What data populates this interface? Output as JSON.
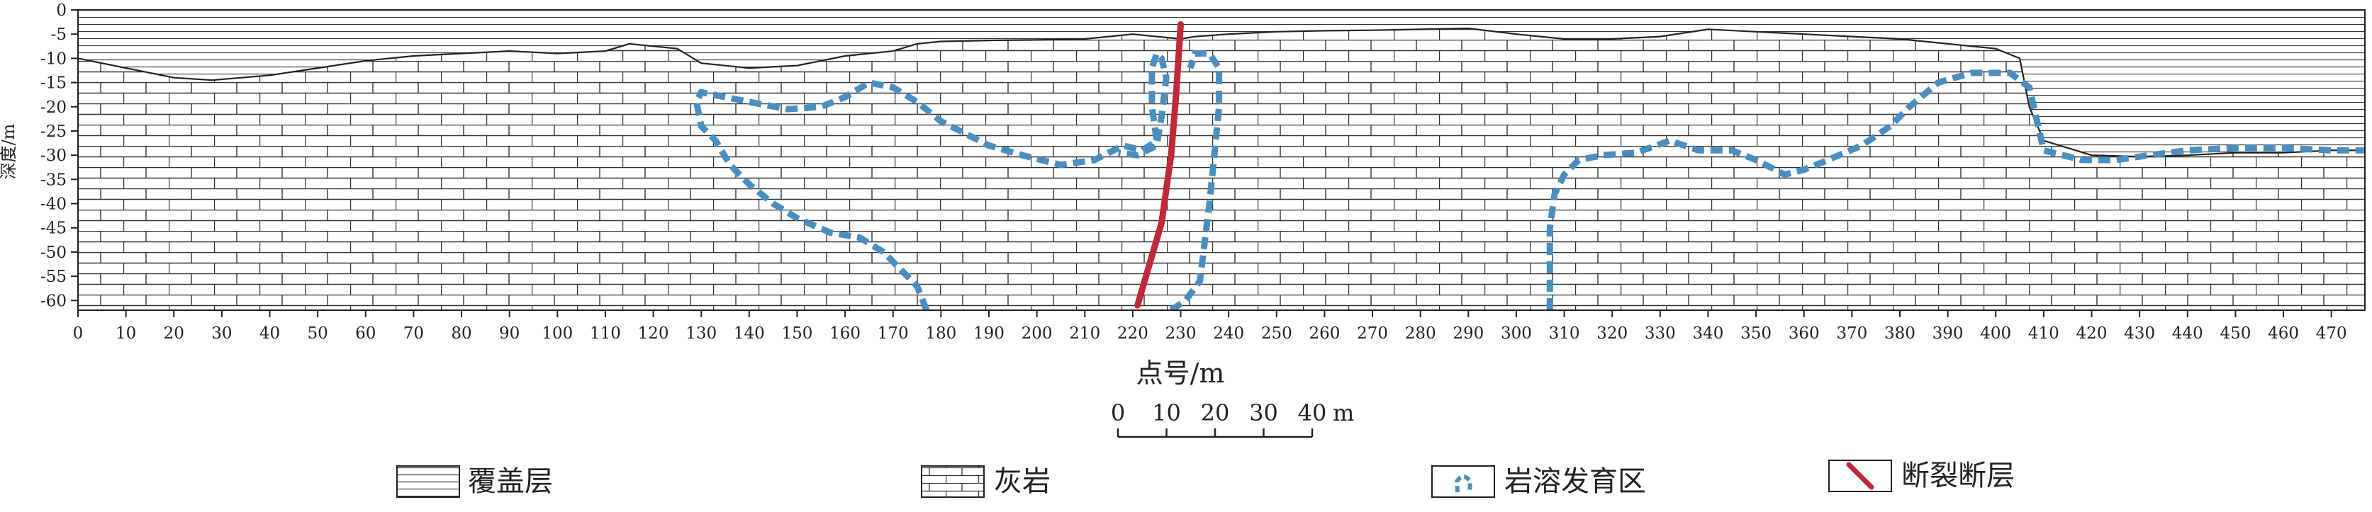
{
  "figure": {
    "y_axis": {
      "label": "深度/m",
      "ticks": [
        0,
        -5,
        -10,
        -15,
        -20,
        -25,
        -30,
        -35,
        -40,
        -45,
        -50,
        -55,
        -60
      ],
      "range": [
        -62,
        0
      ]
    },
    "x_axis": {
      "label": "点号/m",
      "ticks": [
        0,
        10,
        20,
        30,
        40,
        50,
        60,
        70,
        80,
        90,
        100,
        110,
        120,
        130,
        140,
        150,
        160,
        170,
        180,
        190,
        200,
        210,
        220,
        230,
        240,
        250,
        260,
        270,
        280,
        290,
        300,
        310,
        320,
        330,
        340,
        350,
        360,
        370,
        380,
        390,
        400,
        410,
        420,
        430,
        440,
        450,
        460,
        470
      ],
      "range": [
        0,
        477
      ]
    },
    "scale_bar": {
      "labels": [
        "0",
        "10",
        "20",
        "30",
        "40"
      ],
      "unit": "m",
      "values": [
        0,
        10,
        20,
        30,
        40
      ]
    },
    "surface_profile": [
      [
        0,
        -10
      ],
      [
        10,
        -12
      ],
      [
        20,
        -14
      ],
      [
        28,
        -14.5
      ],
      [
        40,
        -13.5
      ],
      [
        50,
        -12
      ],
      [
        60,
        -10.5
      ],
      [
        70,
        -9.5
      ],
      [
        80,
        -9
      ],
      [
        90,
        -8.5
      ],
      [
        100,
        -9
      ],
      [
        110,
        -8.5
      ],
      [
        115,
        -7
      ],
      [
        120,
        -7.5
      ],
      [
        125,
        -8
      ],
      [
        130,
        -11
      ],
      [
        140,
        -12
      ],
      [
        150,
        -11.5
      ],
      [
        160,
        -9.5
      ],
      [
        170,
        -8.5
      ],
      [
        175,
        -7
      ],
      [
        180,
        -6.5
      ],
      [
        190,
        -6.3
      ],
      [
        200,
        -6.2
      ],
      [
        210,
        -6
      ],
      [
        215,
        -5.5
      ],
      [
        220,
        -5
      ],
      [
        225,
        -5.5
      ],
      [
        230,
        -6
      ],
      [
        233,
        -5.5
      ],
      [
        240,
        -5
      ],
      [
        250,
        -4.5
      ],
      [
        260,
        -4.3
      ],
      [
        270,
        -4.2
      ],
      [
        280,
        -4
      ],
      [
        290,
        -3.8
      ],
      [
        300,
        -5
      ],
      [
        310,
        -6
      ],
      [
        320,
        -6
      ],
      [
        330,
        -5.5
      ],
      [
        340,
        -4
      ],
      [
        350,
        -4.5
      ],
      [
        360,
        -5
      ],
      [
        370,
        -5.5
      ],
      [
        380,
        -6
      ],
      [
        390,
        -7
      ],
      [
        400,
        -8
      ],
      [
        405,
        -10
      ],
      [
        407,
        -20
      ],
      [
        410,
        -27
      ],
      [
        420,
        -30
      ],
      [
        430,
        -30.3
      ],
      [
        440,
        -30
      ],
      [
        450,
        -29.5
      ],
      [
        460,
        -29.5
      ],
      [
        470,
        -29
      ],
      [
        477,
        -29
      ]
    ],
    "karst_zones": [
      {
        "id": "left",
        "points": [
          [
            177,
            -62
          ],
          [
            175,
            -57
          ],
          [
            172,
            -54
          ],
          [
            168,
            -50
          ],
          [
            163,
            -47
          ],
          [
            157,
            -46
          ],
          [
            150,
            -43
          ],
          [
            145,
            -40
          ],
          [
            140,
            -36
          ],
          [
            136,
            -32
          ],
          [
            133,
            -27
          ],
          [
            130,
            -24
          ],
          [
            129,
            -19
          ],
          [
            130,
            -17
          ],
          [
            135,
            -18
          ],
          [
            140,
            -19
          ],
          [
            148,
            -20.5
          ],
          [
            155,
            -20
          ],
          [
            160,
            -18
          ],
          [
            165,
            -15
          ],
          [
            170,
            -16
          ],
          [
            175,
            -19
          ],
          [
            180,
            -23
          ],
          [
            186,
            -26
          ],
          [
            190,
            -28
          ],
          [
            197,
            -30
          ],
          [
            205,
            -32
          ],
          [
            212,
            -31
          ],
          [
            218,
            -28
          ],
          [
            222,
            -29
          ],
          [
            225,
            -27
          ],
          [
            224,
            -20
          ],
          [
            224,
            -12
          ],
          [
            225,
            -9
          ],
          [
            226,
            -10
          ],
          [
            227,
            -14
          ],
          [
            226,
            -22
          ],
          [
            225,
            -28
          ],
          [
            221,
            -30
          ],
          [
            217,
            -29.5
          ]
        ]
      },
      {
        "id": "middle",
        "points": [
          [
            228,
            -62
          ],
          [
            231,
            -60
          ],
          [
            234,
            -56
          ],
          [
            235,
            -48
          ],
          [
            236,
            -40
          ],
          [
            237,
            -30
          ],
          [
            238,
            -20
          ],
          [
            238,
            -12
          ],
          [
            236,
            -9
          ],
          [
            233,
            -9
          ],
          [
            232,
            -12
          ]
        ]
      },
      {
        "id": "right",
        "points": [
          [
            307,
            -62
          ],
          [
            307,
            -55
          ],
          [
            307,
            -45
          ],
          [
            308,
            -38
          ],
          [
            310,
            -34
          ],
          [
            313,
            -31
          ],
          [
            318,
            -30
          ],
          [
            325,
            -29.5
          ],
          [
            332,
            -27
          ],
          [
            338,
            -29
          ],
          [
            345,
            -29
          ],
          [
            350,
            -31
          ],
          [
            356,
            -34
          ],
          [
            360,
            -33
          ],
          [
            365,
            -31
          ],
          [
            372,
            -28
          ],
          [
            378,
            -24
          ],
          [
            382,
            -20
          ],
          [
            388,
            -15
          ],
          [
            395,
            -13
          ],
          [
            403,
            -13
          ],
          [
            407,
            -16
          ],
          [
            410,
            -29
          ],
          [
            418,
            -31
          ],
          [
            425,
            -31
          ],
          [
            432,
            -30
          ],
          [
            440,
            -29
          ],
          [
            450,
            -28.5
          ],
          [
            460,
            -28.5
          ],
          [
            470,
            -29
          ],
          [
            477,
            -29
          ]
        ]
      }
    ],
    "fault": [
      [
        230,
        -3
      ],
      [
        229,
        -18
      ],
      [
        228,
        -30
      ],
      [
        226,
        -44
      ],
      [
        221,
        -61
      ]
    ]
  },
  "legend": {
    "items": [
      {
        "key": "overburden",
        "label": "覆盖层"
      },
      {
        "key": "limestone",
        "label": "灰岩"
      },
      {
        "key": "karst",
        "label": "岩溶发育区"
      },
      {
        "key": "fault",
        "label": "断裂断层"
      }
    ]
  },
  "colors": {
    "karst": "#4a8ec0",
    "fault": "#c0293a",
    "lines": "#222222"
  }
}
